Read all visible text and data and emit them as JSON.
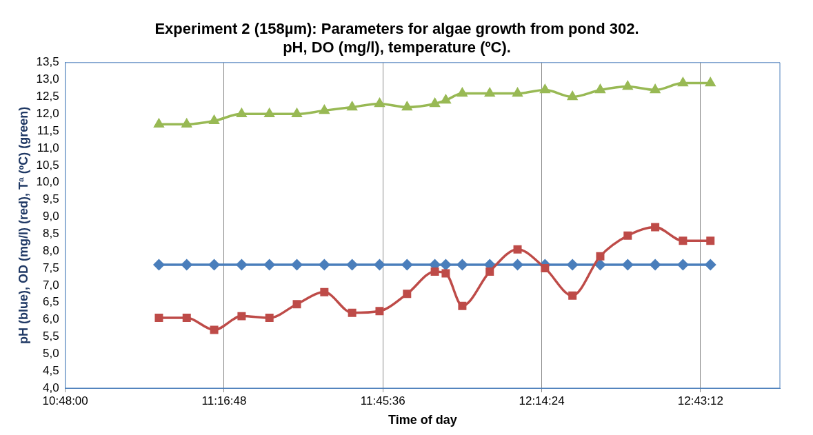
{
  "chart_data": {
    "type": "line",
    "title": "Experiment 2 (158µm): Parameters for algae growth from pond 302.\npH, DO (mg/l), temperature (ºC).",
    "xlabel": "Time of day",
    "ylabel": "pH (blue), OD (mg/l) (red), Tª (ºC) (green)",
    "x": [
      11.083,
      11.167,
      11.25,
      11.333,
      11.417,
      11.5,
      11.583,
      11.667,
      11.75,
      11.833,
      11.917,
      11.95,
      12.0,
      12.083,
      12.167,
      12.25,
      12.333,
      12.417,
      12.5,
      12.583,
      12.667,
      12.75
    ],
    "series": [
      {
        "color": "#4a7ebb",
        "marker": "diamond",
        "values": [
          7.6,
          7.6,
          7.6,
          7.6,
          7.6,
          7.6,
          7.6,
          7.6,
          7.6,
          7.6,
          7.6,
          7.6,
          7.6,
          7.6,
          7.6,
          7.6,
          7.6,
          7.6,
          7.6,
          7.6,
          7.6,
          7.6
        ]
      },
      {
        "color": "#be4b48",
        "marker": "square",
        "values": [
          6.05,
          6.05,
          5.7,
          6.1,
          6.05,
          6.45,
          6.8,
          6.2,
          6.25,
          6.75,
          7.4,
          7.35,
          6.4,
          7.4,
          8.05,
          7.5,
          6.7,
          7.85,
          8.45,
          8.7,
          8.3,
          8.3
        ]
      },
      {
        "color": "#98b954",
        "marker": "triangle",
        "values": [
          11.7,
          11.7,
          11.8,
          12.0,
          12.0,
          12.0,
          12.1,
          12.2,
          12.3,
          12.2,
          12.3,
          12.4,
          12.6,
          12.6,
          12.6,
          12.7,
          12.5,
          12.7,
          12.8,
          12.7,
          12.9,
          12.9
        ]
      }
    ],
    "xlim": [
      10.8,
      12.96
    ],
    "xticks": [
      {
        "value": 10.8,
        "label": "10:48:00"
      },
      {
        "value": 11.28,
        "label": "11:16:48"
      },
      {
        "value": 11.76,
        "label": "11:45:36"
      },
      {
        "value": 12.24,
        "label": "12:14:24"
      },
      {
        "value": 12.72,
        "label": "12:43:12"
      }
    ],
    "ylim": [
      4.0,
      13.5
    ],
    "yticks": [
      {
        "value": 4.0,
        "label": "4,0"
      },
      {
        "value": 4.5,
        "label": "4,5"
      },
      {
        "value": 5.0,
        "label": "5,0"
      },
      {
        "value": 5.5,
        "label": "5,5"
      },
      {
        "value": 6.0,
        "label": "6,0"
      },
      {
        "value": 6.5,
        "label": "6,5"
      },
      {
        "value": 7.0,
        "label": "7,0"
      },
      {
        "value": 7.5,
        "label": "7,5"
      },
      {
        "value": 8.0,
        "label": "8,0"
      },
      {
        "value": 8.5,
        "label": "8,5"
      },
      {
        "value": 9.0,
        "label": "9,0"
      },
      {
        "value": 9.5,
        "label": "9,5"
      },
      {
        "value": 10.0,
        "label": "10,0"
      },
      {
        "value": 10.5,
        "label": "10,5"
      },
      {
        "value": 11.0,
        "label": "11,0"
      },
      {
        "value": 11.5,
        "label": "11,5"
      },
      {
        "value": 12.0,
        "label": "12,0"
      },
      {
        "value": 12.5,
        "label": "12,5"
      },
      {
        "value": 13.0,
        "label": "13,0"
      },
      {
        "value": 13.5,
        "label": "13,5"
      }
    ],
    "grid": "x",
    "legend": false,
    "line_style": "solid"
  }
}
